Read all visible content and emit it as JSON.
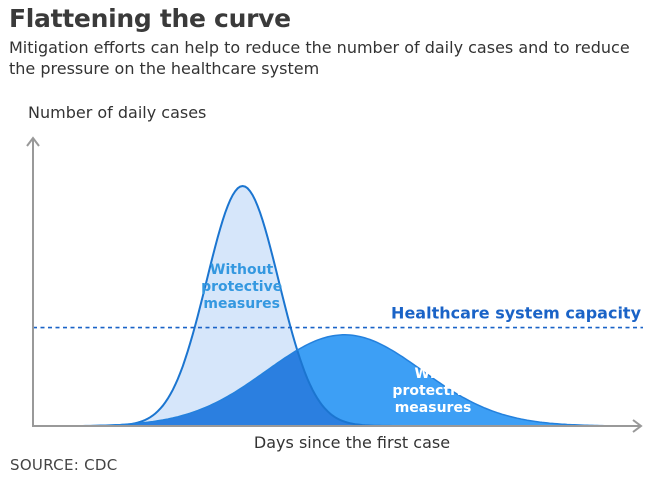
{
  "title": "Flattening the curve",
  "subtitle": "Mitigation efforts can help to reduce the number of daily cases and to reduce the pressure on the healthcare system",
  "source": "SOURCE: CDC",
  "colors": {
    "without_fill": "#d6e6fa",
    "without_stroke": "#1b75d0",
    "with_fill": "#3d9ff5",
    "overlap_fill": "#2b7fe0",
    "with_stroke": "#2481dd",
    "label_without": "#3498e0",
    "label_with": "#ffffff",
    "capacity": "#1a63c7",
    "axis": "#999999"
  },
  "chart_data": {
    "type": "area",
    "xlabel": "Days since the first case",
    "ylabel": "Number of daily cases",
    "x_scale": "unlabeled",
    "y_scale": "unlabeled",
    "series": [
      {
        "name": "Without protective measures",
        "label_lines": [
          "Without",
          "protective",
          "measures"
        ],
        "shape": "gaussian",
        "peak_x": 0.35,
        "peak_y": 1.0,
        "spread": 0.06
      },
      {
        "name": "With protective measures",
        "label_lines": [
          "With",
          "protective",
          "measures"
        ],
        "shape": "gaussian",
        "peak_x": 0.52,
        "peak_y": 0.38,
        "spread": 0.13
      }
    ],
    "annotations": [
      {
        "type": "horizontal-line",
        "label": "Healthcare system capacity",
        "y": 0.41,
        "style": "dashed"
      }
    ]
  }
}
